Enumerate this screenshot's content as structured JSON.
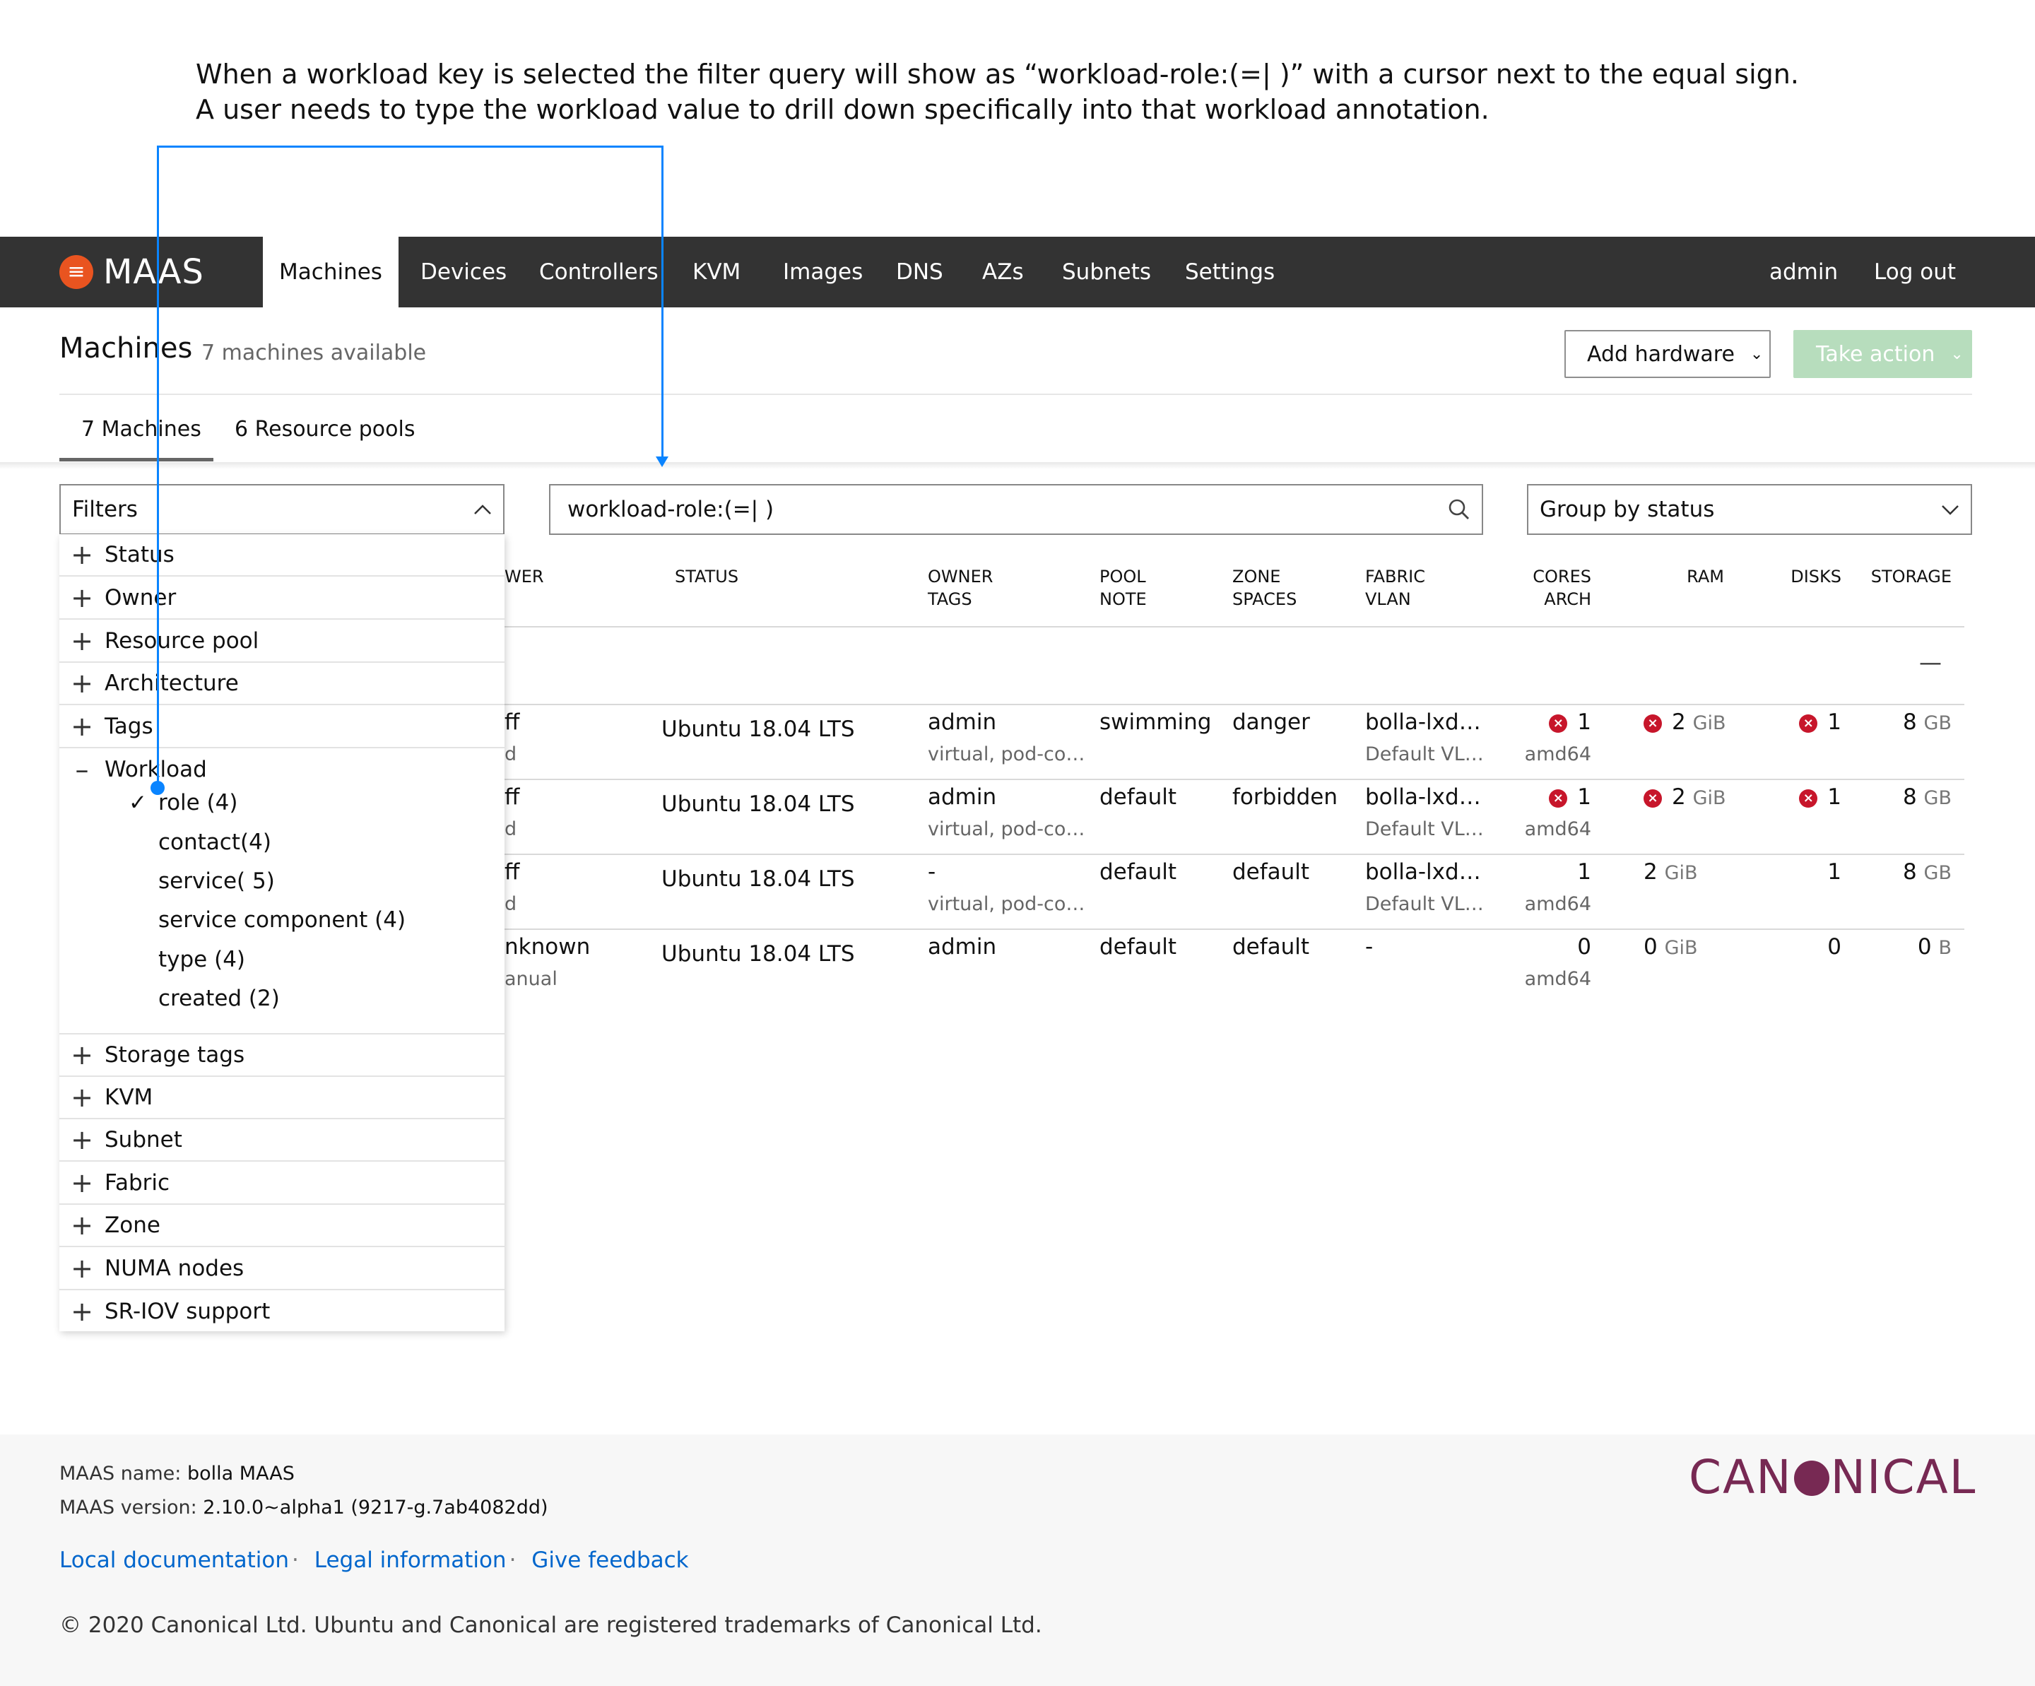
{
  "annotation": {
    "line1": "When a workload key is selected the filter query will show as “workload-role:(=| )” with a cursor next to the equal sign.",
    "line2": "A user needs to type the workload value to drill down specifically into that workload annotation."
  },
  "nav": {
    "brand": "MAAS",
    "items": [
      "Machines",
      "Devices",
      "Controllers",
      "KVM",
      "Images",
      "DNS",
      "AZs",
      "Subnets",
      "Settings"
    ],
    "active": "Machines",
    "user": "admin",
    "logout": "Log out"
  },
  "header": {
    "title": "Machines",
    "subtitle": "7 machines available",
    "add_hardware": "Add hardware",
    "take_action": "Take action",
    "colors": {
      "take_action_bg": "#b7ddbd",
      "nav_bg": "#333333",
      "brand_orange": "#e95420"
    }
  },
  "tabs": [
    "7 Machines",
    "6 Resource pools"
  ],
  "toolbar": {
    "filters_label": "Filters",
    "search_value": "workload-role:(=| )",
    "group_by": "Group by status"
  },
  "filters": {
    "before": [
      "Status",
      "Owner",
      "Resource pool",
      "Architecture",
      "Tags"
    ],
    "open_group": "Workload",
    "workload_options": [
      {
        "label": "role (4)",
        "checked": true
      },
      {
        "label": "contact(4)",
        "checked": false
      },
      {
        "label": "service( 5)",
        "checked": false
      },
      {
        "label": "service component (4)",
        "checked": false
      },
      {
        "label": "type (4)",
        "checked": false
      },
      {
        "label": "created (2)",
        "checked": false
      }
    ],
    "after": [
      "Storage tags",
      "KVM",
      "Subnet",
      "Fabric",
      "Zone",
      "NUMA nodes",
      "SR-IOV support"
    ]
  },
  "table": {
    "headers": {
      "owner": "WER",
      "status": "STATUS",
      "owner_tags": [
        "OWNER",
        "TAGS"
      ],
      "pool_note": [
        "POOL",
        "NOTE"
      ],
      "zone_spaces": [
        "ZONE",
        "SPACES"
      ],
      "fabric_vlan": [
        "FABRIC",
        "VLAN"
      ],
      "cores_arch": [
        "CORES",
        "ARCH"
      ],
      "ram": "RAM",
      "disks": "DISKS",
      "storage": "STORAGE"
    },
    "group_toggle": "—",
    "rows": [
      {
        "power": "ff",
        "power_sub": "d",
        "status": "Ubuntu 18.04 LTS",
        "owner": "admin",
        "tags": "virtual, pod-co…",
        "pool": "swimming",
        "zone": "danger",
        "fabric": "bolla-lxd…",
        "vlan": "Default VL…",
        "cores": "1",
        "arch": "amd64",
        "ram": "2",
        "ram_unit": "GiB",
        "disks": "1",
        "storage": "8",
        "storage_unit": "GB",
        "errors": true
      },
      {
        "power": "ff",
        "power_sub": "d",
        "status": "Ubuntu 18.04 LTS",
        "owner": "admin",
        "tags": "virtual, pod-co…",
        "pool": "default",
        "zone": "forbidden",
        "fabric": "bolla-lxd…",
        "vlan": "Default VL…",
        "cores": "1",
        "arch": "amd64",
        "ram": "2",
        "ram_unit": "GiB",
        "disks": "1",
        "storage": "8",
        "storage_unit": "GB",
        "errors": true
      },
      {
        "power": "ff",
        "power_sub": "d",
        "status": "Ubuntu 18.04 LTS",
        "owner": "-",
        "tags": "virtual, pod-co…",
        "pool": "default",
        "zone": "default",
        "fabric": "bolla-lxd…",
        "vlan": "Default VL…",
        "cores": "1",
        "arch": "amd64",
        "ram": "2",
        "ram_unit": "GiB",
        "disks": "1",
        "storage": "8",
        "storage_unit": "GB",
        "errors": false
      },
      {
        "power": "nknown",
        "power_sub": "anual",
        "status": "Ubuntu 18.04 LTS",
        "owner": "admin",
        "tags": "",
        "pool": "default",
        "zone": "default",
        "fabric": "-",
        "vlan": "",
        "cores": "0",
        "arch": "amd64",
        "ram": "0",
        "ram_unit": "GiB",
        "disks": "0",
        "storage": "0",
        "storage_unit": "B",
        "errors": false
      }
    ]
  },
  "footer": {
    "name_label": "MAAS name:",
    "name_value": "bolla MAAS",
    "version_label": "MAAS version:",
    "version_value": "2.10.0~alpha1 (9217-g.7ab4082dd)",
    "links": [
      "Local documentation",
      "Legal information",
      "Give feedback"
    ],
    "copyright": "© 2020 Canonical Ltd. Ubuntu and Canonical are registered trademarks of Canonical Ltd.",
    "brand_left": "CAN",
    "brand_right": "NICAL"
  }
}
